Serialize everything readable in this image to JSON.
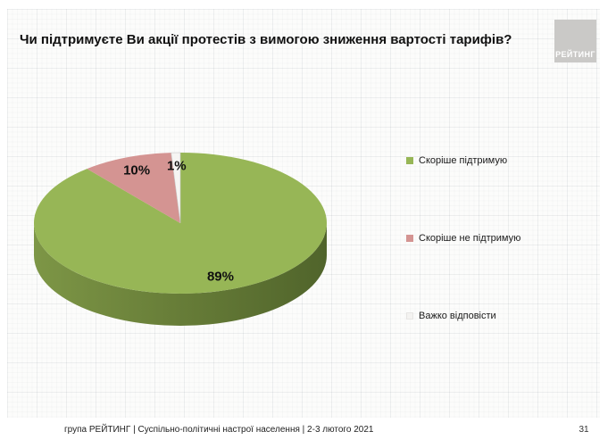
{
  "slide": {
    "title": "Чи підтримуєте Ви акції протестів з вимогою зниження вартості тарифів?",
    "logo_text": "РЕЙТИНГ",
    "footer_text": "група РЕЙТИНГ | Суспільно-політичні настрої населення | 2-3 лютого 2021",
    "page_number": "31"
  },
  "chart_data": {
    "type": "pie",
    "title": "Чи підтримуєте Ви акції протестів з вимогою зниження вартості тарифів?",
    "labels": [
      "Скоріше підтримую",
      "Скоріше не підтримую",
      "Важко відповісти"
    ],
    "values": [
      89,
      10,
      1
    ],
    "data_labels": [
      "89%",
      "10%",
      "1%"
    ],
    "colors": [
      "#97B656",
      "#D49492",
      "#F6F5F3"
    ],
    "side_gradient": [
      "#7d9646",
      "#697f39",
      "#50642b"
    ],
    "start_angle_deg": 0,
    "direction": "clockwise",
    "style": "3d",
    "legend_position": "right"
  },
  "legend": {
    "items": [
      {
        "label": "Скоріше підтримую",
        "color": "#97B656"
      },
      {
        "label": "Скоріше не підтримую",
        "color": "#D49492"
      },
      {
        "label": "Важко відповісти",
        "color": "#F4F3F1"
      }
    ]
  }
}
